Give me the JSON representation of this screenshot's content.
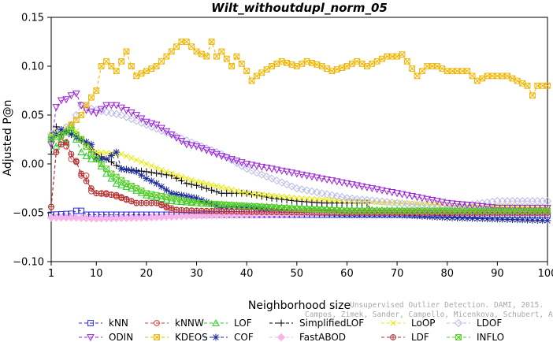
{
  "chart_data": {
    "type": "line",
    "title": "Wilt_withoutdupl_norm_05",
    "xlabel": "Neighborhood size",
    "ylabel": "Adjusted P@n",
    "xlim": [
      1,
      100
    ],
    "ylim": [
      -0.1,
      0.15
    ],
    "xticks": [
      1,
      10,
      20,
      30,
      40,
      50,
      60,
      70,
      80,
      90,
      100
    ],
    "yticks": [
      -0.1,
      -0.05,
      0.0,
      0.05,
      0.1,
      0.15
    ],
    "ytick_labels": [
      "−0.10",
      "−0.05",
      "0.00",
      "0.05",
      "0.10",
      "0.15"
    ],
    "legend_position": "bottom",
    "watermark": [
      "Unsupervised Outlier Detection. DAMI, 2015.",
      "Campos, Zimek, Sander, Campello, Micenkova, Schubert, Assent, Houle"
    ],
    "series": [
      {
        "name": "kNN",
        "color": "#2a2ae0",
        "marker": "square",
        "line": "dashed",
        "points": [
          [
            1,
            -0.052
          ],
          [
            5,
            -0.051
          ],
          [
            6,
            -0.048
          ],
          [
            7,
            -0.048
          ],
          [
            8,
            -0.052
          ],
          [
            30,
            -0.052
          ],
          [
            60,
            -0.052
          ],
          [
            100,
            -0.052
          ]
        ]
      },
      {
        "name": "kNNW",
        "color": "#d23a3a",
        "marker": "circle",
        "line": "dashed",
        "points": [
          [
            1,
            -0.044
          ],
          [
            2,
            0.012
          ],
          [
            3,
            0.028
          ],
          [
            4,
            0.018
          ],
          [
            5,
            0.005
          ],
          [
            6,
            0.003
          ],
          [
            7,
            -0.012
          ],
          [
            8,
            -0.012
          ],
          [
            9,
            -0.028
          ],
          [
            10,
            -0.03
          ],
          [
            12,
            -0.03
          ],
          [
            15,
            -0.035
          ],
          [
            18,
            -0.04
          ],
          [
            22,
            -0.04
          ],
          [
            25,
            -0.047
          ],
          [
            30,
            -0.048
          ],
          [
            40,
            -0.049
          ],
          [
            60,
            -0.05
          ],
          [
            100,
            -0.05
          ]
        ]
      },
      {
        "name": "LOF",
        "color": "#22cc22",
        "marker": "triangle-up",
        "line": "dashed",
        "points": [
          [
            1,
            0.03
          ],
          [
            2,
            0.018
          ],
          [
            3,
            0.025
          ],
          [
            4,
            0.022
          ],
          [
            5,
            0.04
          ],
          [
            6,
            0.025
          ],
          [
            7,
            0.012
          ],
          [
            8,
            0.008
          ],
          [
            9,
            0.005
          ],
          [
            10,
            0.005
          ],
          [
            12,
            -0.01
          ],
          [
            14,
            -0.02
          ],
          [
            17,
            -0.025
          ],
          [
            20,
            -0.032
          ],
          [
            25,
            -0.038
          ],
          [
            30,
            -0.04
          ],
          [
            40,
            -0.043
          ],
          [
            50,
            -0.045
          ],
          [
            60,
            -0.047
          ],
          [
            80,
            -0.048
          ],
          [
            100,
            -0.048
          ]
        ]
      },
      {
        "name": "SimplifiedLOF",
        "color": "#000000",
        "marker": "plus",
        "line": "dashed",
        "points": [
          [
            1,
            0.01
          ],
          [
            2,
            0.038
          ],
          [
            3,
            0.03
          ],
          [
            4,
            0.034
          ],
          [
            5,
            0.032
          ],
          [
            6,
            0.028
          ],
          [
            8,
            0.02
          ],
          [
            10,
            0.01
          ],
          [
            13,
            0.002
          ],
          [
            15,
            -0.005
          ],
          [
            20,
            -0.008
          ],
          [
            25,
            -0.012
          ],
          [
            28,
            -0.02
          ],
          [
            30,
            -0.022
          ],
          [
            35,
            -0.03
          ],
          [
            40,
            -0.03
          ],
          [
            45,
            -0.035
          ],
          [
            50,
            -0.038
          ],
          [
            55,
            -0.04
          ],
          [
            60,
            -0.04
          ],
          [
            64,
            -0.04
          ],
          [
            65,
            -0.05
          ],
          [
            100,
            -0.05
          ]
        ]
      },
      {
        "name": "LoOP",
        "color": "#e8e800",
        "marker": "x",
        "line": "dashed",
        "points": [
          [
            1,
            0.03
          ],
          [
            3,
            0.035
          ],
          [
            5,
            0.04
          ],
          [
            8,
            0.02
          ],
          [
            10,
            0.012
          ],
          [
            15,
            0.01
          ],
          [
            20,
            0.0
          ],
          [
            25,
            -0.01
          ],
          [
            30,
            -0.018
          ],
          [
            40,
            -0.03
          ],
          [
            50,
            -0.035
          ],
          [
            60,
            -0.038
          ],
          [
            70,
            -0.04
          ],
          [
            80,
            -0.042
          ],
          [
            100,
            -0.045
          ]
        ]
      },
      {
        "name": "LDOF",
        "color": "#b9b9e8",
        "marker": "diamond",
        "line": "dashed",
        "points": [
          [
            1,
            0.03
          ],
          [
            3,
            0.035
          ],
          [
            5,
            0.04
          ],
          [
            7,
            0.06
          ],
          [
            10,
            0.055
          ],
          [
            15,
            0.05
          ],
          [
            20,
            0.04
          ],
          [
            25,
            0.03
          ],
          [
            30,
            0.02
          ],
          [
            35,
            0.01
          ],
          [
            40,
            -0.005
          ],
          [
            45,
            -0.015
          ],
          [
            50,
            -0.025
          ],
          [
            60,
            -0.035
          ],
          [
            70,
            -0.04
          ],
          [
            80,
            -0.045
          ],
          [
            90,
            -0.038
          ],
          [
            100,
            -0.038
          ]
        ]
      },
      {
        "name": "ODIN",
        "color": "#9a22d8",
        "marker": "triangle-down",
        "line": "dashed",
        "points": [
          [
            1,
            0.02
          ],
          [
            2,
            0.058
          ],
          [
            3,
            0.065
          ],
          [
            4,
            0.066
          ],
          [
            5,
            0.07
          ],
          [
            6,
            0.072
          ],
          [
            7,
            0.06
          ],
          [
            8,
            0.055
          ],
          [
            10,
            0.052
          ],
          [
            12,
            0.06
          ],
          [
            14,
            0.06
          ],
          [
            16,
            0.055
          ],
          [
            18,
            0.05
          ],
          [
            20,
            0.043
          ],
          [
            22,
            0.04
          ],
          [
            25,
            0.03
          ],
          [
            28,
            0.02
          ],
          [
            30,
            0.018
          ],
          [
            35,
            0.008
          ],
          [
            40,
            0.0
          ],
          [
            45,
            -0.005
          ],
          [
            50,
            -0.01
          ],
          [
            55,
            -0.015
          ],
          [
            60,
            -0.02
          ],
          [
            65,
            -0.025
          ],
          [
            70,
            -0.03
          ],
          [
            75,
            -0.035
          ],
          [
            80,
            -0.04
          ],
          [
            90,
            -0.045
          ],
          [
            100,
            -0.045
          ]
        ]
      },
      {
        "name": "KDEOS",
        "color": "#f0b400",
        "marker": "square-x",
        "line": "dashed",
        "points": [
          [
            5,
            0.04
          ],
          [
            6,
            0.045
          ],
          [
            7,
            0.05
          ],
          [
            8,
            0.06
          ],
          [
            9,
            0.068
          ],
          [
            10,
            0.075
          ],
          [
            11,
            0.1
          ],
          [
            12,
            0.105
          ],
          [
            13,
            0.1
          ],
          [
            14,
            0.095
          ],
          [
            15,
            0.105
          ],
          [
            16,
            0.115
          ],
          [
            17,
            0.1
          ],
          [
            18,
            0.09
          ],
          [
            20,
            0.095
          ],
          [
            22,
            0.1
          ],
          [
            24,
            0.11
          ],
          [
            26,
            0.12
          ],
          [
            27,
            0.125
          ],
          [
            28,
            0.125
          ],
          [
            30,
            0.115
          ],
          [
            32,
            0.11
          ],
          [
            33,
            0.125
          ],
          [
            34,
            0.11
          ],
          [
            35,
            0.115
          ],
          [
            37,
            0.1
          ],
          [
            38,
            0.11
          ],
          [
            40,
            0.095
          ],
          [
            41,
            0.085
          ],
          [
            42,
            0.09
          ],
          [
            45,
            0.1
          ],
          [
            47,
            0.105
          ],
          [
            50,
            0.1
          ],
          [
            52,
            0.105
          ],
          [
            55,
            0.1
          ],
          [
            57,
            0.095
          ],
          [
            60,
            0.1
          ],
          [
            62,
            0.105
          ],
          [
            64,
            0.1
          ],
          [
            66,
            0.105
          ],
          [
            68,
            0.11
          ],
          [
            70,
            0.11
          ],
          [
            71,
            0.112
          ],
          [
            72,
            0.105
          ],
          [
            74,
            0.09
          ],
          [
            76,
            0.1
          ],
          [
            78,
            0.1
          ],
          [
            80,
            0.095
          ],
          [
            84,
            0.095
          ],
          [
            86,
            0.085
          ],
          [
            88,
            0.09
          ],
          [
            90,
            0.09
          ],
          [
            92,
            0.09
          ],
          [
            94,
            0.085
          ],
          [
            96,
            0.08
          ],
          [
            97,
            0.07
          ],
          [
            98,
            0.08
          ],
          [
            100,
            0.08
          ]
        ]
      },
      {
        "name": "COF",
        "color": "#1a2a9a",
        "marker": "asterisk",
        "line": "dashed",
        "points": [
          [
            1,
            0.025
          ],
          [
            3,
            0.035
          ],
          [
            5,
            0.03
          ],
          [
            7,
            0.025
          ],
          [
            9,
            0.02
          ],
          [
            10,
            0.005
          ],
          [
            12,
            0.005
          ],
          [
            14,
            0.012
          ],
          [
            15,
            -0.005
          ],
          [
            18,
            -0.008
          ],
          [
            20,
            -0.015
          ],
          [
            22,
            -0.02
          ],
          [
            25,
            -0.03
          ],
          [
            30,
            -0.035
          ],
          [
            35,
            -0.045
          ],
          [
            40,
            -0.045
          ],
          [
            50,
            -0.05
          ],
          [
            60,
            -0.052
          ],
          [
            70,
            -0.052
          ],
          [
            80,
            -0.055
          ],
          [
            100,
            -0.058
          ]
        ]
      },
      {
        "name": "FastABOD",
        "color": "#f7b4ea",
        "marker": "diamond-filled",
        "line": "dashed",
        "points": [
          [
            1,
            -0.055
          ],
          [
            5,
            -0.055
          ],
          [
            10,
            -0.056
          ],
          [
            20,
            -0.055
          ],
          [
            30,
            -0.053
          ],
          [
            40,
            -0.052
          ],
          [
            60,
            -0.05
          ],
          [
            80,
            -0.05
          ],
          [
            100,
            -0.05
          ]
        ]
      },
      {
        "name": "LDF",
        "color": "#b03030",
        "marker": "circle-filled",
        "line": "dashed",
        "points": [
          [
            1,
            -0.044
          ],
          [
            2,
            0.012
          ],
          [
            3,
            0.02
          ],
          [
            4,
            0.022
          ],
          [
            5,
            0.01
          ],
          [
            6,
            0.002
          ],
          [
            7,
            -0.01
          ],
          [
            9,
            -0.025
          ],
          [
            10,
            -0.03
          ],
          [
            14,
            -0.032
          ],
          [
            18,
            -0.04
          ],
          [
            22,
            -0.04
          ],
          [
            26,
            -0.047
          ],
          [
            30,
            -0.048
          ],
          [
            40,
            -0.049
          ],
          [
            60,
            -0.05
          ],
          [
            100,
            -0.05
          ]
        ]
      },
      {
        "name": "INFLO",
        "color": "#55cc22",
        "marker": "square-x",
        "line": "dashed",
        "points": [
          [
            1,
            0.025
          ],
          [
            3,
            0.03
          ],
          [
            5,
            0.035
          ],
          [
            7,
            0.025
          ],
          [
            9,
            0.01
          ],
          [
            10,
            0.005
          ],
          [
            13,
            -0.01
          ],
          [
            16,
            -0.02
          ],
          [
            20,
            -0.03
          ],
          [
            25,
            -0.035
          ],
          [
            30,
            -0.04
          ],
          [
            40,
            -0.043
          ],
          [
            50,
            -0.046
          ],
          [
            60,
            -0.048
          ],
          [
            100,
            -0.048
          ]
        ]
      }
    ]
  }
}
